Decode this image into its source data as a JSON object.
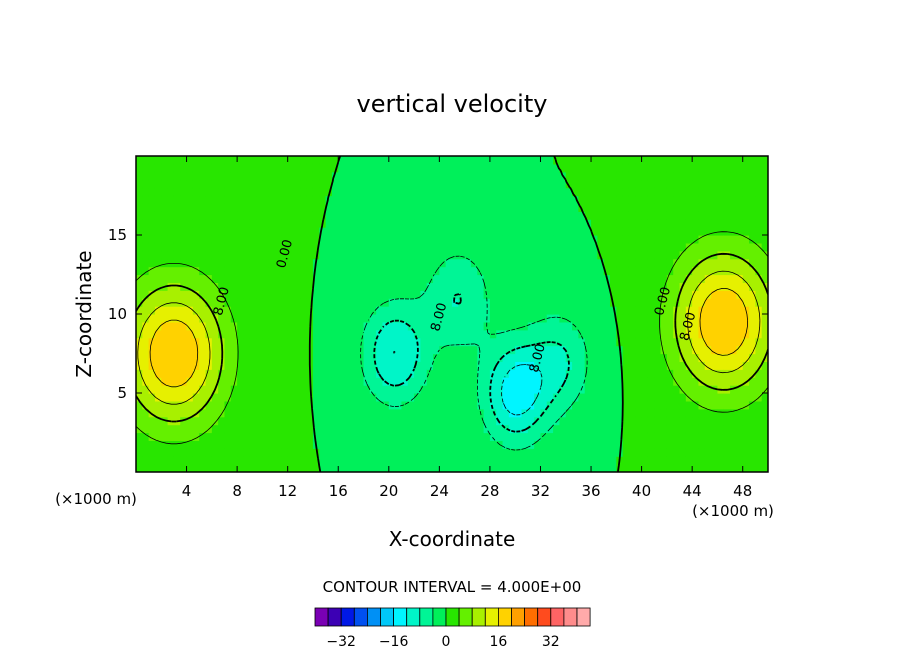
{
  "chart_data": {
    "type": "heatmap",
    "title": "vertical velocity",
    "xlabel": "X-coordinate",
    "ylabel": "Z-coordinate",
    "x_unit": "(×1000 m)",
    "z_unit": "(×1000 m)",
    "xlim": [
      0,
      50
    ],
    "ylim": [
      0,
      20
    ],
    "x_ticks": [
      4,
      8,
      12,
      16,
      20,
      24,
      28,
      32,
      36,
      40,
      44,
      48
    ],
    "y_ticks": [
      5,
      10,
      15
    ],
    "contour_interval_label": "CONTOUR INTERVAL = 4.000E+00",
    "contour_labels": [
      {
        "text": "0.00",
        "x": 11.8,
        "z": 13.8
      },
      {
        "text": "8.00",
        "x": 6.8,
        "z": 10.8
      },
      {
        "text": "8.00",
        "x": 24.0,
        "z": 9.8
      },
      {
        "text": "8.00",
        "x": 31.8,
        "z": 7.2
      },
      {
        "text": "0.00",
        "x": 41.7,
        "z": 10.8
      },
      {
        "text": "8.00",
        "x": 43.7,
        "z": 9.2
      }
    ],
    "colorbar": {
      "colors": [
        "#7a00b4",
        "#3c00b4",
        "#0018e6",
        "#0050f0",
        "#0090f5",
        "#00c8f8",
        "#00f5ff",
        "#00f5c8",
        "#00f596",
        "#00f05a",
        "#28e600",
        "#64f000",
        "#a8f000",
        "#e6f000",
        "#ffd200",
        "#ffa000",
        "#ff6e00",
        "#ff4b1e",
        "#ff6464",
        "#ff8c8c",
        "#ffaaaa"
      ],
      "tick_labels": [
        "-32",
        "-16",
        "0",
        "16",
        "32"
      ],
      "tick_values": [
        -32,
        -16,
        0,
        16,
        32
      ]
    },
    "field_features": [
      {
        "kind": "updraft",
        "x": 3.0,
        "z": 7.5,
        "peak": 20
      },
      {
        "kind": "updraft",
        "x": 46.5,
        "z": 9.5,
        "peak": 20
      },
      {
        "kind": "downdraft",
        "x": 20.5,
        "z": 7.5,
        "peak": -12
      },
      {
        "kind": "downdraft",
        "x": 25.5,
        "z": 11,
        "peak": -8
      },
      {
        "kind": "downdraft",
        "x": 30.0,
        "z": 5,
        "peak": -14
      },
      {
        "kind": "downdraft",
        "x": 33.5,
        "z": 7,
        "peak": -8
      }
    ]
  }
}
